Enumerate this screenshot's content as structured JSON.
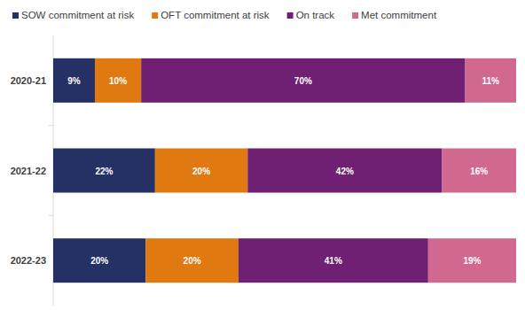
{
  "chart_data": {
    "type": "bar",
    "orientation": "horizontal",
    "stacked": true,
    "data_labels": true,
    "tick_labels": "y",
    "legend": "top",
    "categories": [
      "2020-21",
      "2021-22",
      "2022-23"
    ],
    "xlim": [
      0,
      100
    ],
    "series": [
      {
        "name": "SOW commitment at risk",
        "color": "#253165",
        "values": [
          9,
          22,
          20
        ],
        "value_labels": [
          "9%",
          "22%",
          "20%"
        ]
      },
      {
        "name": "OFT commitment at risk",
        "color": "#e07a10",
        "values": [
          10,
          20,
          20
        ],
        "value_labels": [
          "10%",
          "20%",
          "20%"
        ]
      },
      {
        "name": "On track",
        "color": "#702073",
        "values": [
          70,
          42,
          41
        ],
        "value_labels": [
          "70%",
          "42%",
          "41%"
        ]
      },
      {
        "name": "Met commitment",
        "color": "#d06890",
        "values": [
          11,
          16,
          19
        ],
        "value_labels": [
          "11%",
          "16%",
          "19%"
        ]
      }
    ]
  }
}
